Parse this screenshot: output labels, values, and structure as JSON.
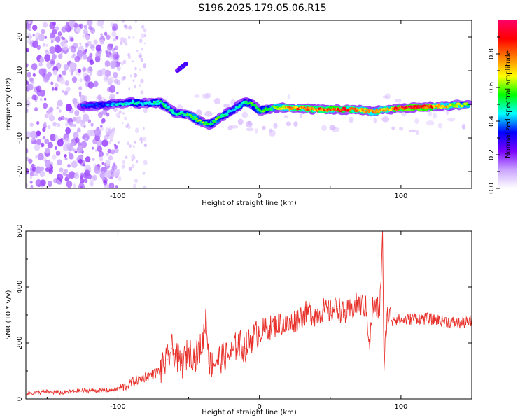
{
  "title": "S196.2025.179.05.06.R15",
  "chart_data": [
    {
      "type": "heatmap",
      "xlabel": "Height of straight line (km)",
      "ylabel": "Frequency (Hz)",
      "xlim": [
        -165,
        150
      ],
      "ylim": [
        -25,
        25
      ],
      "xticks": [
        -100,
        0,
        100
      ],
      "yticks": [
        -20,
        -10,
        0,
        10,
        20
      ],
      "colorbar": {
        "label": "Normalized spectral amplitude",
        "range": [
          0,
          1
        ],
        "ticks": [
          0.0,
          0.2,
          0.4,
          0.6,
          0.8
        ],
        "tick_labels": [
          "0.0",
          "0.2",
          "0.4",
          "0.6",
          "0.8"
        ],
        "colors": [
          "#ffffff",
          "#c9a3ff",
          "#7a00ff",
          "#0000ff",
          "#00ffff",
          "#00ff00",
          "#ffff00",
          "#ff8000",
          "#ff0000",
          "#ff0066"
        ]
      },
      "ridge_trace": {
        "x": [
          -125,
          -110,
          -100,
          -90,
          -80,
          -70,
          -60,
          -50,
          -40,
          -35,
          -30,
          -20,
          -10,
          -5,
          0,
          10,
          20,
          30,
          40,
          50,
          60,
          70,
          80,
          90,
          100,
          110,
          120,
          130,
          140,
          148
        ],
        "y": [
          -0.5,
          -0.2,
          0.2,
          0.5,
          0.2,
          0.6,
          -2.5,
          -3,
          -5.5,
          -6,
          -4.5,
          -2,
          0.8,
          0,
          -2,
          -1,
          -1,
          -1.2,
          -1.5,
          -1.6,
          -1.5,
          -1.5,
          -2.2,
          -1.5,
          -1,
          -1,
          -0.7,
          -0.5,
          -0.2,
          0
        ],
        "amplitude": [
          0.35,
          0.35,
          0.45,
          0.5,
          0.45,
          0.5,
          0.5,
          0.55,
          0.6,
          0.55,
          0.6,
          0.45,
          0.5,
          0.55,
          0.55,
          0.6,
          0.75,
          0.8,
          0.8,
          0.85,
          0.85,
          0.75,
          0.75,
          0.7,
          0.9,
          0.95,
          0.85,
          0.75,
          0.65,
          0.6
        ]
      },
      "side_branch": {
        "x": [
          -58,
          -55,
          -52
        ],
        "y": [
          10,
          11,
          12
        ],
        "amplitude": [
          0.3,
          0.35,
          0.3
        ]
      },
      "noise_region_x": [
        -165,
        -100
      ],
      "sparse_noise_region_x": [
        -100,
        -80
      ]
    },
    {
      "type": "line",
      "xlabel": "Height of straight line (km)",
      "ylabel": "SNR (10 * v/v)",
      "xlim": [
        -165,
        150
      ],
      "ylim": [
        0,
        600
      ],
      "xticks": [
        -100,
        0,
        100
      ],
      "yticks": [
        0,
        200,
        400,
        600
      ],
      "line_color": "#e8302a",
      "series": [
        {
          "x": [
            -165,
            -150,
            -140,
            -130,
            -120,
            -110,
            -100,
            -95,
            -90,
            -85,
            -80,
            -75,
            -70,
            -65,
            -62,
            -60,
            -55,
            -50,
            -45,
            -40,
            -38,
            -35,
            -30,
            -25,
            -20,
            -15,
            -10,
            -5,
            0,
            5,
            10,
            15,
            20,
            25,
            30,
            35,
            40,
            45,
            50,
            55,
            60,
            65,
            70,
            75,
            78,
            80,
            85,
            87,
            88,
            90,
            95,
            100,
            110,
            120,
            130,
            140,
            150
          ],
          "y": [
            20,
            25,
            22,
            28,
            30,
            30,
            35,
            45,
            60,
            70,
            80,
            90,
            100,
            140,
            180,
            160,
            120,
            170,
            150,
            200,
            300,
            120,
            140,
            150,
            160,
            200,
            180,
            220,
            240,
            250,
            260,
            270,
            260,
            280,
            300,
            310,
            300,
            320,
            310,
            330,
            300,
            320,
            340,
            330,
            200,
            330,
            320,
            600,
            100,
            300,
            290,
            280,
            290,
            285,
            280,
            270,
            275
          ]
        }
      ]
    }
  ]
}
